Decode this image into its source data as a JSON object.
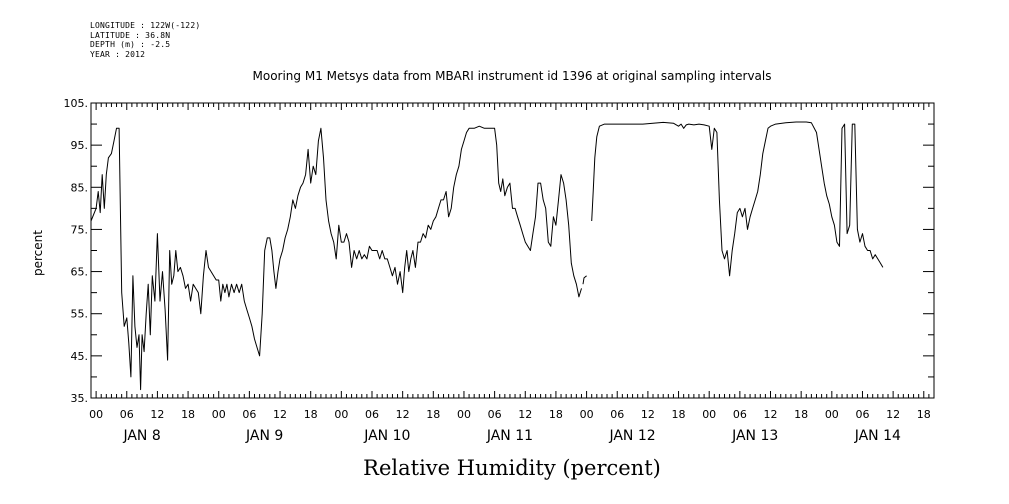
{
  "header": {
    "longitude": "LONGITUDE : 122W(-122)",
    "latitude": "LATITUDE : 36.8N",
    "depth": "DEPTH (m) : -2.5",
    "year": "YEAR : 2012"
  },
  "chart_data": {
    "type": "line",
    "title": "Mooring M1 Metsys data from MBARI instrument id 1396 at original sampling intervals",
    "xlabel": "Relative Humidity (percent)",
    "ylabel": "percent",
    "ylim": [
      35,
      105
    ],
    "yticks": [
      "35.",
      "45.",
      "55.",
      "65.",
      "75.",
      "85.",
      "95.",
      "105."
    ],
    "x_unit": "hours since JAN 8 00",
    "xlim": [
      -1,
      164
    ],
    "hour_labels": [
      "00",
      "06",
      "12",
      "18"
    ],
    "day_labels": [
      "JAN  8",
      "JAN  9",
      "JAN 10",
      "JAN 11",
      "JAN 12",
      "JAN 13",
      "JAN 14"
    ],
    "grid": false,
    "series": [
      {
        "segments": [
          [
            [
              -1,
              77
            ],
            [
              0,
              80
            ],
            [
              0.4,
              84
            ],
            [
              0.8,
              79
            ],
            [
              1.2,
              88
            ],
            [
              1.6,
              80
            ],
            [
              2,
              88
            ],
            [
              2.4,
              92
            ],
            [
              3,
              93
            ],
            [
              3.5,
              96
            ],
            [
              4,
              99
            ],
            [
              4.5,
              99
            ],
            [
              5,
              60
            ],
            [
              5.5,
              52
            ],
            [
              6,
              54
            ],
            [
              6.4,
              48
            ],
            [
              6.8,
              40
            ],
            [
              7.2,
              64
            ],
            [
              7.6,
              52
            ],
            [
              8,
              47
            ],
            [
              8.4,
              50
            ],
            [
              8.7,
              37
            ],
            [
              9,
              50
            ],
            [
              9.4,
              46
            ],
            [
              9.8,
              55
            ],
            [
              10.2,
              62
            ],
            [
              10.6,
              50
            ],
            [
              11,
              64
            ],
            [
              11.5,
              58
            ],
            [
              12,
              74
            ],
            [
              12.5,
              58
            ],
            [
              13,
              65
            ],
            [
              13.5,
              56
            ],
            [
              14,
              44
            ],
            [
              14.4,
              70
            ],
            [
              14.8,
              62
            ],
            [
              15.2,
              64
            ],
            [
              15.6,
              70
            ],
            [
              16,
              65
            ],
            [
              16.5,
              66
            ],
            [
              17,
              64
            ],
            [
              17.5,
              61
            ],
            [
              18,
              62
            ],
            [
              18.5,
              58
            ],
            [
              19,
              62
            ],
            [
              19.5,
              61
            ],
            [
              20,
              60
            ],
            [
              20.5,
              55
            ],
            [
              21,
              64
            ],
            [
              21.5,
              70
            ],
            [
              22,
              66
            ],
            [
              22.5,
              65
            ],
            [
              23,
              64
            ],
            [
              23.5,
              63
            ],
            [
              24,
              63
            ],
            [
              24.4,
              58
            ],
            [
              24.8,
              62
            ],
            [
              25.2,
              60
            ],
            [
              25.6,
              62
            ],
            [
              26,
              59
            ],
            [
              26.5,
              62
            ],
            [
              27,
              60
            ],
            [
              27.5,
              62
            ],
            [
              28,
              60
            ],
            [
              28.5,
              62
            ],
            [
              29,
              58
            ],
            [
              29.5,
              56
            ],
            [
              30,
              54
            ],
            [
              30.5,
              52
            ],
            [
              31,
              49
            ],
            [
              31.5,
              47
            ],
            [
              32,
              45
            ],
            [
              32.5,
              55
            ],
            [
              33,
              70
            ],
            [
              33.5,
              73
            ],
            [
              34,
              73
            ],
            [
              34.4,
              70
            ],
            [
              34.8,
              65
            ],
            [
              35.2,
              61
            ],
            [
              35.6,
              65
            ],
            [
              36,
              68
            ],
            [
              36.5,
              70
            ],
            [
              37,
              73
            ],
            [
              37.5,
              75
            ],
            [
              38,
              78
            ],
            [
              38.5,
              82
            ],
            [
              39,
              80
            ],
            [
              39.5,
              83
            ],
            [
              40,
              85
            ],
            [
              40.5,
              86
            ],
            [
              41,
              88
            ],
            [
              41.5,
              94
            ],
            [
              42,
              86
            ],
            [
              42.5,
              90
            ],
            [
              43,
              88
            ],
            [
              43.5,
              96
            ],
            [
              44,
              99
            ],
            [
              44.5,
              92
            ],
            [
              45,
              82
            ],
            [
              45.5,
              77
            ],
            [
              46,
              74
            ],
            [
              46.5,
              72
            ],
            [
              47,
              68
            ],
            [
              47.5,
              76
            ],
            [
              48,
              72
            ],
            [
              48.5,
              72
            ],
            [
              49,
              74
            ],
            [
              49.5,
              72
            ],
            [
              50,
              66
            ],
            [
              50.5,
              70
            ],
            [
              51,
              68
            ],
            [
              51.5,
              70
            ],
            [
              52,
              68
            ],
            [
              52.5,
              69
            ],
            [
              53,
              68
            ],
            [
              53.5,
              71
            ],
            [
              54,
              70
            ],
            [
              54.5,
              70
            ],
            [
              55,
              70
            ],
            [
              55.5,
              68
            ],
            [
              56,
              70
            ],
            [
              56.5,
              68
            ],
            [
              57,
              68
            ],
            [
              57.5,
              66
            ],
            [
              58,
              64
            ],
            [
              58.5,
              66
            ],
            [
              59,
              62
            ],
            [
              59.5,
              65
            ],
            [
              60,
              60
            ],
            [
              60.4,
              66
            ],
            [
              60.8,
              70
            ],
            [
              61.2,
              65
            ],
            [
              61.6,
              68
            ],
            [
              62,
              70
            ],
            [
              62.5,
              66
            ],
            [
              63,
              72
            ],
            [
              63.5,
              72
            ],
            [
              64,
              74
            ],
            [
              64.5,
              73
            ],
            [
              65,
              76
            ],
            [
              65.5,
              75
            ],
            [
              66,
              77
            ],
            [
              66.5,
              78
            ],
            [
              67,
              80
            ],
            [
              67.5,
              82
            ],
            [
              68,
              82
            ],
            [
              68.5,
              84
            ],
            [
              69,
              78
            ],
            [
              69.5,
              80
            ],
            [
              70,
              85
            ],
            [
              70.5,
              88
            ],
            [
              71,
              90
            ],
            [
              71.5,
              94
            ],
            [
              72,
              96
            ],
            [
              72.5,
              98
            ],
            [
              73,
              99
            ],
            [
              74,
              99
            ],
            [
              75,
              99.5
            ],
            [
              76,
              99
            ],
            [
              77,
              99
            ],
            [
              78,
              99
            ],
            [
              78.4,
              95
            ],
            [
              78.8,
              86
            ],
            [
              79.2,
              84
            ],
            [
              79.6,
              87
            ],
            [
              80,
              83
            ],
            [
              80.5,
              85
            ],
            [
              81,
              86
            ],
            [
              81.5,
              80
            ],
            [
              82,
              80
            ],
            [
              82.5,
              78
            ],
            [
              83,
              76
            ],
            [
              83.5,
              74
            ],
            [
              84,
              72
            ],
            [
              84.5,
              71
            ],
            [
              85,
              70
            ],
            [
              85.5,
              74
            ],
            [
              86,
              78
            ],
            [
              86.5,
              86
            ],
            [
              87,
              86
            ],
            [
              87.5,
              82
            ],
            [
              88,
              80
            ],
            [
              88.5,
              72
            ],
            [
              89,
              71
            ],
            [
              89.5,
              78
            ],
            [
              90,
              76
            ],
            [
              90.5,
              82
            ],
            [
              91,
              88
            ],
            [
              91.5,
              86
            ],
            [
              92,
              82
            ],
            [
              92.5,
              76
            ],
            [
              93,
              67
            ],
            [
              93.5,
              64
            ],
            [
              94,
              62
            ],
            [
              94.5,
              59
            ],
            [
              95,
              61
            ]
          ],
          [
            [
              95.3,
              62
            ],
            [
              95.5,
              63.5
            ],
            [
              96,
              64
            ]
          ],
          [
            [
              97,
              77
            ],
            [
              97.3,
              84
            ],
            [
              97.6,
              92
            ],
            [
              98,
              97
            ],
            [
              98.5,
              99.5
            ],
            [
              99.5,
              100
            ],
            [
              101,
              100
            ],
            [
              103,
              100
            ],
            [
              105,
              100
            ],
            [
              107,
              100
            ],
            [
              109,
              100.2
            ],
            [
              111,
              100.4
            ],
            [
              113,
              100.2
            ],
            [
              114,
              99.5
            ],
            [
              114.5,
              100
            ],
            [
              115,
              99
            ],
            [
              115.5,
              99.8
            ],
            [
              116,
              100
            ],
            [
              117,
              99.8
            ],
            [
              118,
              100
            ],
            [
              119,
              99.8
            ],
            [
              120,
              99.5
            ],
            [
              120.5,
              94
            ],
            [
              121,
              99
            ],
            [
              121.5,
              98
            ],
            [
              122,
              82
            ],
            [
              122.5,
              70
            ],
            [
              123,
              68
            ],
            [
              123.5,
              70
            ],
            [
              124,
              64
            ],
            [
              124.5,
              70
            ],
            [
              125,
              74
            ],
            [
              125.5,
              79
            ],
            [
              126,
              80
            ],
            [
              126.5,
              78
            ],
            [
              127,
              80
            ],
            [
              127.5,
              75
            ],
            [
              128,
              78
            ],
            [
              128.5,
              80
            ],
            [
              129,
              82
            ],
            [
              129.5,
              84
            ],
            [
              130,
              88
            ],
            [
              130.5,
              93
            ],
            [
              131,
              96
            ],
            [
              131.5,
              99
            ],
            [
              132,
              99.5
            ],
            [
              133,
              100
            ],
            [
              135,
              100.3
            ],
            [
              137,
              100.5
            ],
            [
              139,
              100.5
            ],
            [
              140,
              100.3
            ],
            [
              141,
              98
            ],
            [
              142,
              90
            ],
            [
              142.5,
              86
            ],
            [
              143,
              83
            ],
            [
              143.5,
              81
            ],
            [
              144,
              78
            ],
            [
              144.5,
              76
            ],
            [
              145,
              72
            ],
            [
              145.5,
              71
            ],
            [
              146,
              99
            ],
            [
              146.5,
              100
            ],
            [
              147,
              74
            ],
            [
              147.5,
              76
            ],
            [
              148,
              100
            ],
            [
              148.5,
              100
            ],
            [
              149,
              75
            ],
            [
              149.5,
              72
            ],
            [
              150,
              74
            ],
            [
              150.5,
              71
            ],
            [
              151,
              70
            ],
            [
              151.5,
              70
            ],
            [
              152,
              68
            ],
            [
              152.5,
              69
            ],
            [
              153,
              68
            ],
            [
              153.5,
              67
            ],
            [
              154,
              66
            ]
          ]
        ]
      }
    ]
  }
}
